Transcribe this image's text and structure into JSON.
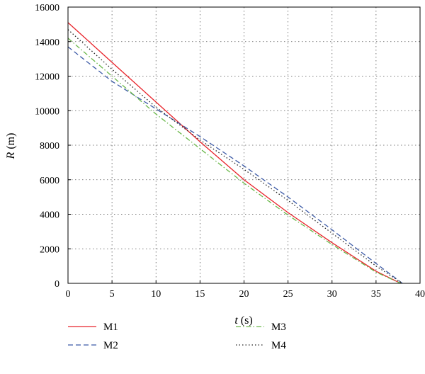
{
  "chart_data": {
    "type": "line",
    "xlabel": {
      "symbol": "t",
      "unit": " (s)"
    },
    "ylabel": {
      "symbol": "R",
      "unit": " (m)"
    },
    "xlim": [
      0,
      40
    ],
    "ylim": [
      0,
      16000
    ],
    "xticks": [
      0,
      5,
      10,
      15,
      20,
      25,
      30,
      35,
      40
    ],
    "yticks": [
      0,
      2000,
      4000,
      6000,
      8000,
      10000,
      12000,
      14000,
      16000
    ],
    "xtick_labels": [
      "0",
      "5",
      "10",
      "15",
      "20",
      "25",
      "30",
      "35",
      "40"
    ],
    "ytick_labels": [
      "0",
      "2000",
      "4000",
      "6000",
      "8000",
      "10000",
      "12000",
      "14000",
      "16000"
    ],
    "grid": true,
    "legend_position": "bottom",
    "series": [
      {
        "name": "M1",
        "color": "#e8232a",
        "dash": "solid",
        "x": [
          0,
          5,
          10,
          15,
          20,
          25,
          30,
          35,
          37.8
        ],
        "y": [
          15100,
          12800,
          10500,
          8200,
          6000,
          4100,
          2350,
          700,
          0
        ]
      },
      {
        "name": "M2",
        "color": "#3c5aa6",
        "dash": "dashed",
        "x": [
          0,
          5,
          10,
          15,
          20,
          25,
          30,
          35,
          38
        ],
        "y": [
          13700,
          11700,
          10100,
          8500,
          6800,
          5000,
          3100,
          1150,
          0
        ]
      },
      {
        "name": "M3",
        "color": "#6ab84a",
        "dash": "dashdot",
        "x": [
          0,
          5,
          10,
          15,
          20,
          25,
          30,
          35,
          37.8
        ],
        "y": [
          14200,
          12000,
          9800,
          7800,
          5800,
          3950,
          2250,
          650,
          0
        ]
      },
      {
        "name": "M4",
        "color": "#222222",
        "dash": "dotted",
        "x": [
          0,
          5,
          10,
          15,
          20,
          25,
          30,
          35,
          38
        ],
        "y": [
          14700,
          12400,
          10200,
          8300,
          6600,
          4800,
          2900,
          1000,
          0
        ]
      }
    ]
  }
}
